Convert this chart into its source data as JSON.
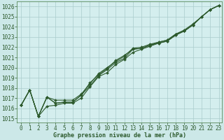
{
  "title": "Graphe pression niveau de la mer (hPa)",
  "bg_color": "#cce8e8",
  "plot_bg_color": "#d4eeee",
  "grid_color": "#aacccc",
  "line_color": "#2d5a2d",
  "spine_color": "#5a8a5a",
  "xlim": [
    -0.5,
    23.4
  ],
  "ylim": [
    1014.6,
    1026.5
  ],
  "xticks": [
    0,
    1,
    2,
    3,
    4,
    5,
    6,
    7,
    8,
    9,
    10,
    11,
    12,
    13,
    14,
    15,
    16,
    17,
    18,
    19,
    20,
    21,
    22,
    23
  ],
  "yticks": [
    1015,
    1016,
    1017,
    1018,
    1019,
    1020,
    1021,
    1022,
    1023,
    1024,
    1025,
    1026
  ],
  "series": [
    [
      1016.3,
      1017.8,
      1015.2,
      1017.1,
      1016.5,
      1016.6,
      1016.6,
      1017.3,
      1018.2,
      1019.2,
      1019.8,
      1020.5,
      1020.9,
      1021.8,
      1021.9,
      1022.2,
      1022.4,
      1022.6,
      1023.2,
      1023.6,
      1024.2,
      1025.0,
      1025.7,
      1026.1
    ],
    [
      1016.3,
      1017.8,
      1015.2,
      1017.1,
      1016.8,
      1016.8,
      1016.8,
      1017.4,
      1018.4,
      1019.4,
      1020.0,
      1020.6,
      1021.1,
      1021.9,
      1022.0,
      1022.3,
      1022.5,
      1022.7,
      1023.3,
      1023.7,
      1024.3,
      1025.0,
      1025.7,
      1026.1
    ],
    [
      1016.3,
      1017.8,
      1015.2,
      1016.2,
      1016.3,
      1016.5,
      1016.5,
      1017.0,
      1018.1,
      1019.1,
      1019.5,
      1020.3,
      1020.8,
      1021.5,
      1021.8,
      1022.1,
      1022.4,
      1022.6,
      1023.2,
      1023.6,
      1024.2,
      1025.0,
      1025.7,
      1026.1
    ],
    [
      1016.3,
      1017.8,
      1015.2,
      1017.1,
      1016.5,
      1016.6,
      1016.6,
      1017.3,
      1018.5,
      1019.3,
      1019.9,
      1020.7,
      1021.2,
      1021.8,
      1021.9,
      1022.2,
      1022.5,
      1022.7,
      1023.3,
      1023.6,
      1024.2,
      1025.0,
      1025.7,
      1026.1
    ]
  ],
  "tick_fontsize": 5.5,
  "label_fontsize": 6.0,
  "marker_size": 2.0,
  "line_width": 0.8
}
